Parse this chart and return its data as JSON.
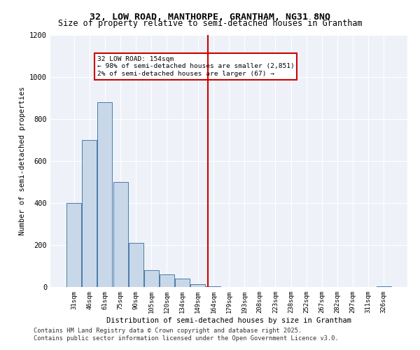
{
  "title_line1": "32, LOW ROAD, MANTHORPE, GRANTHAM, NG31 8NQ",
  "title_line2": "Size of property relative to semi-detached houses in Grantham",
  "xlabel": "Distribution of semi-detached houses by size in Grantham",
  "ylabel": "Number of semi-detached properties",
  "annotation_title": "32 LOW ROAD: 154sqm",
  "annotation_line2": "← 98% of semi-detached houses are smaller (2,851)",
  "annotation_line3": "2% of semi-detached houses are larger (67) →",
  "footer_line1": "Contains HM Land Registry data © Crown copyright and database right 2025.",
  "footer_line2": "Contains public sector information licensed under the Open Government Licence v3.0.",
  "bins": [
    "31sqm",
    "46sqm",
    "61sqm",
    "75sqm",
    "90sqm",
    "105sqm",
    "120sqm",
    "134sqm",
    "149sqm",
    "164sqm",
    "179sqm",
    "193sqm",
    "208sqm",
    "223sqm",
    "238sqm",
    "252sqm",
    "267sqm",
    "282sqm",
    "297sqm",
    "311sqm",
    "326sqm"
  ],
  "values": [
    400,
    700,
    880,
    500,
    210,
    80,
    60,
    40,
    15,
    5,
    0,
    0,
    0,
    0,
    0,
    0,
    0,
    0,
    0,
    0,
    5
  ],
  "bar_color": "#c8d8e8",
  "bar_edge_color": "#4a7aaa",
  "vline_x": 8.65,
  "vline_color": "#cc0000",
  "annotation_box_color": "#cc0000",
  "bg_color": "#eef2f8",
  "ylim": [
    0,
    1200
  ],
  "yticks": [
    0,
    200,
    400,
    600,
    800,
    1000,
    1200
  ]
}
